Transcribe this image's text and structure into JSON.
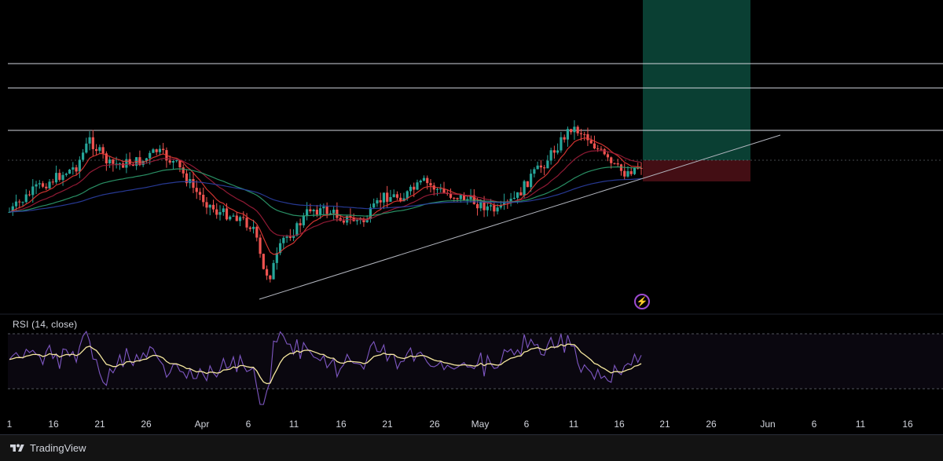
{
  "chart_data": {
    "type": "line",
    "series_kind": "candlestick",
    "x_tick_labels": [
      "1",
      "16",
      "21",
      "26",
      "Apr",
      "6",
      "11",
      "16",
      "21",
      "26",
      "May",
      "6",
      "11",
      "16",
      "21",
      "26",
      "Jun",
      "6",
      "11",
      "16"
    ],
    "price_levels": [
      {
        "name": "resistance-1",
        "rel": 0.82
      },
      {
        "name": "resistance-2",
        "rel": 0.74
      },
      {
        "name": "resistance-3",
        "rel": 0.6
      }
    ],
    "rsi": {
      "label": "RSI (14, close)",
      "upper": 70,
      "lower": 30
    },
    "position": {
      "type": "long",
      "target_zone_color": "#0c4a3c",
      "stop_zone_color": "#4a1016"
    },
    "colors": {
      "up": "#26a69a",
      "down": "#ef5350",
      "ema_fast": "#e53935",
      "ema_mid": "#9e1d3a",
      "ema_slow": "#2e9e6f",
      "ema_long": "#2b3fa3",
      "rsi_line": "#7e57c2",
      "rsi_ma": "#f5e79e",
      "trendline": "#b2b5be"
    }
  },
  "footer": {
    "brand": "TradingView"
  }
}
